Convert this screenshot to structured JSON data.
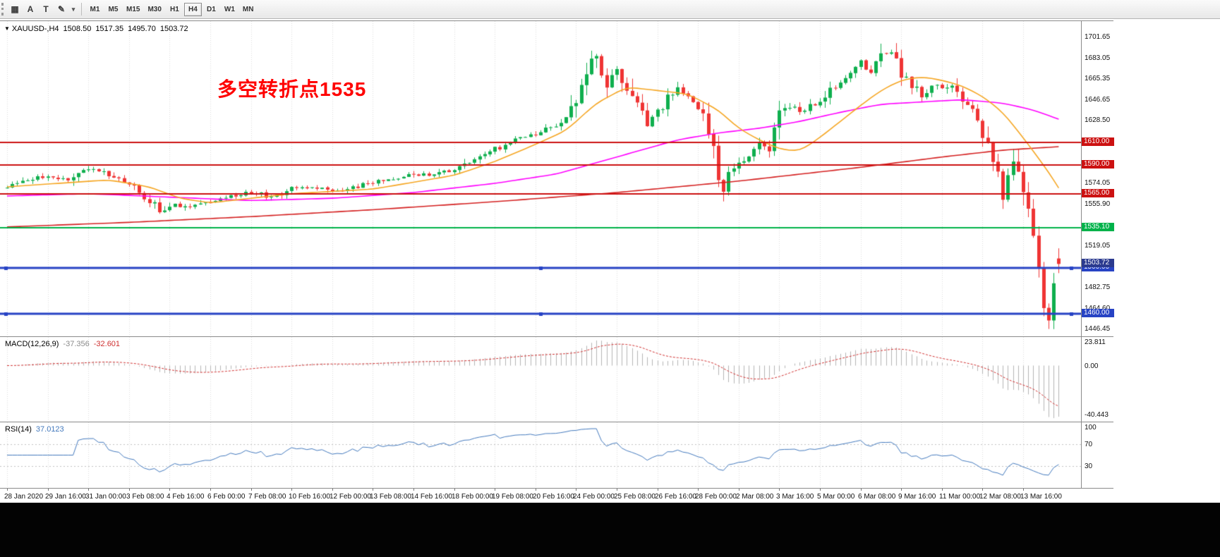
{
  "colors": {
    "up": "#0faf4e",
    "down": "#ef3434",
    "grid": "#dcdcdc",
    "ma_fast": "#f5a623",
    "ma_mid": "#ff00ff",
    "ma_slow": "#d42020",
    "macd_hist": "#b4b4b4",
    "macd_signal": "#d03030",
    "rsi_line": "#4379bd",
    "rsi_level": "#c0c0c0"
  },
  "toolbar": {
    "icons": [
      {
        "name": "chart-window-icon",
        "glyph": "▦"
      },
      {
        "name": "cursor-tool-icon",
        "glyph": "A"
      },
      {
        "name": "text-tool-icon",
        "glyph": "T"
      },
      {
        "name": "color-scheme-icon",
        "glyph": "✎"
      },
      {
        "name": "dropdown-arrow-icon",
        "glyph": "▾"
      }
    ],
    "timeframes": [
      {
        "label": "M1",
        "active": false
      },
      {
        "label": "M5",
        "active": false
      },
      {
        "label": "M15",
        "active": false
      },
      {
        "label": "M30",
        "active": false
      },
      {
        "label": "H1",
        "active": false
      },
      {
        "label": "H4",
        "active": true
      },
      {
        "label": "D1",
        "active": false
      },
      {
        "label": "W1",
        "active": false
      },
      {
        "label": "MN",
        "active": false
      }
    ]
  },
  "chart": {
    "header": {
      "expander": "▼",
      "symbol": "XAUUSD-,H4",
      "open": "1508.50",
      "high": "1517.35",
      "low": "1495.70",
      "close": "1503.72"
    },
    "annotation": {
      "text": "多空转折点1535",
      "color": "#ff0000"
    },
    "price_scale": {
      "min": 1440.6,
      "max": 1715.5,
      "ticks": [
        1701.65,
        1683.05,
        1665.35,
        1646.65,
        1628.5,
        1574.05,
        1555.9,
        1519.05,
        1482.75,
        1464.6,
        1446.45
      ]
    },
    "levels": [
      {
        "value": 1610.0,
        "label": "1610.00",
        "color": "#cc1111",
        "width": 2,
        "handles": false
      },
      {
        "value": 1590.0,
        "label": "1590.00",
        "color": "#cc1111",
        "width": 2,
        "handles": false
      },
      {
        "value": 1565.0,
        "label": "1565.00",
        "color": "#cc1111",
        "width": 2,
        "handles": false
      },
      {
        "value": 1535.1,
        "label": "1535.10",
        "color": "#00b24a",
        "width": 2,
        "handles": false
      },
      {
        "value": 1500.0,
        "label": "1500.00",
        "color": "#2743c4",
        "width": 3,
        "handles": true
      },
      {
        "value": 1460.0,
        "label": "1460.00",
        "color": "#2743c4",
        "width": 3,
        "handles": true
      }
    ],
    "bid": {
      "value": 1503.72,
      "label": "1503.72",
      "bg": "#2b3a8f"
    }
  },
  "chart_data": {
    "type": "candlestick",
    "symbol": "XAUUSD",
    "timeframe": "H4",
    "bars": 208,
    "bars_per_label": 8,
    "last_bar": {
      "o": 1508.5,
      "h": 1517.35,
      "l": 1495.7,
      "c": 1503.72
    },
    "low_extreme": {
      "bar": 205,
      "value": 1447.0
    },
    "price_path": [
      [
        0,
        1571
      ],
      [
        4,
        1576
      ],
      [
        8,
        1581
      ],
      [
        12,
        1575
      ],
      [
        16,
        1588
      ],
      [
        18,
        1585
      ],
      [
        22,
        1579
      ],
      [
        26,
        1568
      ],
      [
        30,
        1549
      ],
      [
        33,
        1556
      ],
      [
        36,
        1552
      ],
      [
        40,
        1558
      ],
      [
        44,
        1563
      ],
      [
        48,
        1567
      ],
      [
        52,
        1562
      ],
      [
        56,
        1569
      ],
      [
        60,
        1571
      ],
      [
        64,
        1566
      ],
      [
        68,
        1570
      ],
      [
        72,
        1575
      ],
      [
        76,
        1578
      ],
      [
        80,
        1582
      ],
      [
        84,
        1581
      ],
      [
        88,
        1586
      ],
      [
        92,
        1596
      ],
      [
        96,
        1604
      ],
      [
        100,
        1611
      ],
      [
        104,
        1618
      ],
      [
        108,
        1624
      ],
      [
        110,
        1630
      ],
      [
        112,
        1650
      ],
      [
        114,
        1672
      ],
      [
        116,
        1686
      ],
      [
        118,
        1660
      ],
      [
        120,
        1672
      ],
      [
        122,
        1658
      ],
      [
        124,
        1640
      ],
      [
        126,
        1628
      ],
      [
        128,
        1636
      ],
      [
        130,
        1648
      ],
      [
        132,
        1655
      ],
      [
        134,
        1650
      ],
      [
        136,
        1642
      ],
      [
        138,
        1620
      ],
      [
        140,
        1580
      ],
      [
        141,
        1565
      ],
      [
        142,
        1585
      ],
      [
        144,
        1592
      ],
      [
        146,
        1598
      ],
      [
        148,
        1608
      ],
      [
        150,
        1600
      ],
      [
        152,
        1635
      ],
      [
        154,
        1642
      ],
      [
        156,
        1636
      ],
      [
        158,
        1642
      ],
      [
        160,
        1645
      ],
      [
        162,
        1655
      ],
      [
        164,
        1662
      ],
      [
        166,
        1668
      ],
      [
        168,
        1678
      ],
      [
        170,
        1672
      ],
      [
        172,
        1690
      ],
      [
        174,
        1688
      ],
      [
        176,
        1668
      ],
      [
        178,
        1660
      ],
      [
        180,
        1650
      ],
      [
        182,
        1660
      ],
      [
        184,
        1655
      ],
      [
        186,
        1662
      ],
      [
        188,
        1650
      ],
      [
        190,
        1640
      ],
      [
        192,
        1620
      ],
      [
        194,
        1590
      ],
      [
        196,
        1565
      ],
      [
        197,
        1575
      ],
      [
        198,
        1590
      ],
      [
        200,
        1570
      ],
      [
        201,
        1545
      ],
      [
        202,
        1530
      ],
      [
        203,
        1505
      ],
      [
        204,
        1470
      ],
      [
        205,
        1452
      ],
      [
        206,
        1480
      ],
      [
        207,
        1504
      ]
    ],
    "ma_fast_path": [
      [
        0,
        1571
      ],
      [
        10,
        1574
      ],
      [
        20,
        1577
      ],
      [
        28,
        1571
      ],
      [
        34,
        1561
      ],
      [
        40,
        1557
      ],
      [
        48,
        1561
      ],
      [
        56,
        1565
      ],
      [
        64,
        1567
      ],
      [
        72,
        1569
      ],
      [
        80,
        1575
      ],
      [
        88,
        1581
      ],
      [
        96,
        1593
      ],
      [
        104,
        1608
      ],
      [
        110,
        1620
      ],
      [
        116,
        1644
      ],
      [
        122,
        1658
      ],
      [
        128,
        1655
      ],
      [
        134,
        1652
      ],
      [
        140,
        1638
      ],
      [
        144,
        1622
      ],
      [
        148,
        1612
      ],
      [
        152,
        1604
      ],
      [
        156,
        1602
      ],
      [
        160,
        1614
      ],
      [
        164,
        1628
      ],
      [
        168,
        1642
      ],
      [
        172,
        1655
      ],
      [
        176,
        1664
      ],
      [
        180,
        1667
      ],
      [
        184,
        1664
      ],
      [
        188,
        1659
      ],
      [
        192,
        1650
      ],
      [
        196,
        1636
      ],
      [
        200,
        1614
      ],
      [
        203,
        1596
      ],
      [
        205,
        1584
      ],
      [
        207,
        1570
      ]
    ],
    "ma_mid_path": [
      [
        0,
        1563
      ],
      [
        16,
        1565
      ],
      [
        32,
        1562
      ],
      [
        48,
        1559
      ],
      [
        64,
        1561
      ],
      [
        80,
        1566
      ],
      [
        96,
        1574
      ],
      [
        108,
        1582
      ],
      [
        116,
        1592
      ],
      [
        124,
        1602
      ],
      [
        132,
        1612
      ],
      [
        140,
        1618
      ],
      [
        148,
        1622
      ],
      [
        156,
        1628
      ],
      [
        164,
        1636
      ],
      [
        172,
        1643
      ],
      [
        180,
        1645
      ],
      [
        188,
        1647
      ],
      [
        196,
        1644
      ],
      [
        202,
        1638
      ],
      [
        207,
        1630
      ]
    ],
    "ma_slow_path": [
      [
        0,
        1536
      ],
      [
        24,
        1540
      ],
      [
        48,
        1545
      ],
      [
        72,
        1551
      ],
      [
        96,
        1558
      ],
      [
        120,
        1566
      ],
      [
        144,
        1576
      ],
      [
        168,
        1588
      ],
      [
        184,
        1597
      ],
      [
        196,
        1603
      ],
      [
        207,
        1606
      ]
    ]
  },
  "macd": {
    "name": "MACD(12,26,9)",
    "main_value": "-37.356",
    "signal_value": "-32.601",
    "axis": [
      23.811,
      0,
      -40.443
    ],
    "axis_labels": [
      "23.811",
      "0.00",
      "-40.443"
    ]
  },
  "rsi": {
    "name": "RSI(14)",
    "value": "37.0123",
    "axis": [
      100,
      70,
      30
    ],
    "axis_labels": [
      "100",
      "70",
      "30"
    ],
    "levels": [
      70,
      30
    ]
  },
  "time_axis": {
    "labels": [
      "28 Jan 2020",
      "29 Jan 16:00",
      "31 Jan 00:00",
      "3 Feb 08:00",
      "4 Feb 16:00",
      "6 Feb 00:00",
      "7 Feb 08:00",
      "10 Feb 16:00",
      "12 Feb 00:00",
      "13 Feb 08:00",
      "14 Feb 16:00",
      "18 Feb 00:00",
      "19 Feb 08:00",
      "20 Feb 16:00",
      "24 Feb 00:00",
      "25 Feb 08:00",
      "26 Feb 16:00",
      "28 Feb 00:00",
      "2 Mar 08:00",
      "3 Mar 16:00",
      "5 Mar 00:00",
      "6 Mar 08:00",
      "9 Mar 16:00",
      "11 Mar 00:00",
      "12 Mar 08:00",
      "13 Mar 16:00"
    ]
  }
}
